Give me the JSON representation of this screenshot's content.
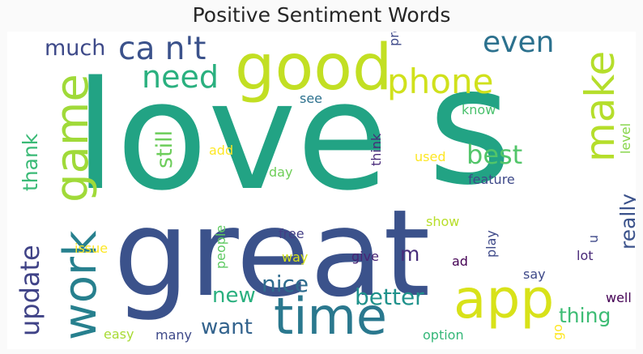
{
  "chart_data": {
    "type": "wordcloud",
    "title": "Positive Sentiment Words",
    "colormap": "viridis",
    "words": [
      {
        "text": "love",
        "weight": 100,
        "color": "#22a384"
      },
      {
        "text": "great",
        "weight": 92,
        "color": "#3b528b"
      },
      {
        "text": "s",
        "weight": 70,
        "color": "#22a384"
      },
      {
        "text": "good",
        "weight": 38,
        "color": "#c2df23"
      },
      {
        "text": "time",
        "weight": 30,
        "color": "#2a788e"
      },
      {
        "text": "app",
        "weight": 30,
        "color": "#d8e219"
      },
      {
        "text": "game",
        "weight": 28,
        "color": "#a0da39"
      },
      {
        "text": "work",
        "weight": 28,
        "color": "#27808e"
      },
      {
        "text": "make",
        "weight": 25,
        "color": "#b5de2b"
      },
      {
        "text": "phone",
        "weight": 20,
        "color": "#d0e11c"
      },
      {
        "text": "need",
        "weight": 18,
        "color": "#2ab07f"
      },
      {
        "text": "ca n't",
        "weight": 18,
        "color": "#3b528b"
      },
      {
        "text": "even",
        "weight": 17,
        "color": "#2c718e"
      },
      {
        "text": "best",
        "weight": 16,
        "color": "#52c569"
      },
      {
        "text": "much",
        "weight": 13,
        "color": "#3e4a89"
      },
      {
        "text": "update",
        "weight": 16,
        "color": "#404387"
      },
      {
        "text": "thank",
        "weight": 12,
        "color": "#3aba76"
      },
      {
        "text": "still",
        "weight": 12,
        "color": "#6ccd5a"
      },
      {
        "text": "nice",
        "weight": 13,
        "color": "#2f6c8e"
      },
      {
        "text": "better",
        "weight": 13,
        "color": "#20928c"
      },
      {
        "text": "new",
        "weight": 12,
        "color": "#2ab07f"
      },
      {
        "text": "want",
        "weight": 12,
        "color": "#33638d"
      },
      {
        "text": "really",
        "weight": 12,
        "color": "#3b528b"
      },
      {
        "text": "thing",
        "weight": 12,
        "color": "#3dbc74"
      },
      {
        "text": "m",
        "weight": 11,
        "color": "#472d7b"
      },
      {
        "text": "problem",
        "weight": 7,
        "color": "#3e4989"
      },
      {
        "text": "see",
        "weight": 7,
        "color": "#2d718e"
      },
      {
        "text": "know",
        "weight": 7,
        "color": "#4ac16d"
      },
      {
        "text": "level",
        "weight": 7,
        "color": "#86d549"
      },
      {
        "text": "think",
        "weight": 7,
        "color": "#482979"
      },
      {
        "text": "add",
        "weight": 7,
        "color": "#fde725"
      },
      {
        "text": "used",
        "weight": 7,
        "color": "#fde725"
      },
      {
        "text": "day",
        "weight": 7,
        "color": "#6ece58"
      },
      {
        "text": "feature",
        "weight": 7,
        "color": "#3e4989"
      },
      {
        "text": "show",
        "weight": 7,
        "color": "#b8de29"
      },
      {
        "text": "free",
        "weight": 7,
        "color": "#433e85"
      },
      {
        "text": "people",
        "weight": 7,
        "color": "#5ec962"
      },
      {
        "text": "issue",
        "weight": 7,
        "color": "#fde725"
      },
      {
        "text": "play",
        "weight": 7,
        "color": "#3e4989"
      },
      {
        "text": "way",
        "weight": 7,
        "color": "#d5e21a"
      },
      {
        "text": "give",
        "weight": 7,
        "color": "#482475"
      },
      {
        "text": "ad",
        "weight": 7,
        "color": "#440154"
      },
      {
        "text": "u",
        "weight": 7,
        "color": "#3e4989"
      },
      {
        "text": "lot",
        "weight": 7,
        "color": "#482878"
      },
      {
        "text": "say",
        "weight": 7,
        "color": "#3e4989"
      },
      {
        "text": "well",
        "weight": 7,
        "color": "#440154"
      },
      {
        "text": "easy",
        "weight": 7,
        "color": "#a8db34"
      },
      {
        "text": "many",
        "weight": 7,
        "color": "#3e4989"
      },
      {
        "text": "option",
        "weight": 7,
        "color": "#35b779"
      },
      {
        "text": "go",
        "weight": 7,
        "color": "#fde725"
      }
    ]
  }
}
